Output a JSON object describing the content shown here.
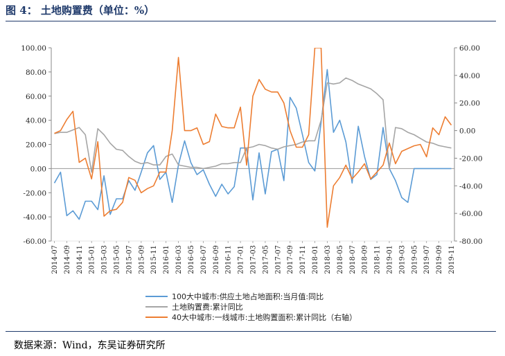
{
  "figure": {
    "title": "图 4：  土地购置费（单位：%）",
    "source": "数据来源：Wind，东吴证券研究所"
  },
  "chart_data": {
    "type": "line",
    "x": [
      "2014-07",
      "2014-08",
      "2014-09",
      "2014-10",
      "2014-11",
      "2014-12",
      "2015-01",
      "2015-02",
      "2015-03",
      "2015-04",
      "2015-05",
      "2015-06",
      "2015-07",
      "2015-08",
      "2015-09",
      "2015-10",
      "2015-11",
      "2015-12",
      "2016-01",
      "2016-02",
      "2016-03",
      "2016-04",
      "2016-05",
      "2016-06",
      "2016-07",
      "2016-08",
      "2016-09",
      "2016-10",
      "2016-11",
      "2016-12",
      "2017-01",
      "2017-02",
      "2017-03",
      "2017-04",
      "2017-05",
      "2017-06",
      "2017-07",
      "2017-08",
      "2017-09",
      "2017-10",
      "2017-11",
      "2017-12",
      "2018-01",
      "2018-02",
      "2018-03",
      "2018-04",
      "2018-05",
      "2018-06",
      "2018-07",
      "2018-08",
      "2018-09",
      "2018-10",
      "2018-11",
      "2018-12",
      "2019-01",
      "2019-02",
      "2019-03",
      "2019-04",
      "2019-05",
      "2019-06",
      "2019-07",
      "2019-08",
      "2019-09",
      "2019-10",
      "2019-11"
    ],
    "x_tick_labels": [
      "2014-07",
      "2014-09",
      "2014-11",
      "2015-01",
      "2015-03",
      "2015-05",
      "2015-07",
      "2015-09",
      "2015-11",
      "2016-01",
      "2016-03",
      "2016-05",
      "2016-07",
      "2016-09",
      "2016-11",
      "2017-01",
      "2017-03",
      "2017-05",
      "2017-07",
      "2017-09",
      "2017-11",
      "2018-01",
      "2018-03",
      "2018-05",
      "2018-07",
      "2018-09",
      "2018-11",
      "2019-01",
      "2019-03",
      "2019-05",
      "2019-07",
      "2019-09",
      "2019-11"
    ],
    "y_left": {
      "min": -60,
      "max": 100,
      "ticks": [
        "100.00",
        "80.00",
        "60.00",
        "40.00",
        "20.00",
        "0.00",
        "-20.00",
        "-40.00",
        "-60.00"
      ]
    },
    "y_right": {
      "min": -80,
      "max": 60,
      "ticks": [
        "60.00",
        "40.00",
        "20.00",
        "0.00",
        "-20.00",
        "-40.00",
        "-60.00",
        "-80.00"
      ]
    },
    "grid": false,
    "legend_position": "bottom",
    "series": [
      {
        "name": "100大中城市:供应土地占地面积:当月值:同比",
        "axis": "left",
        "color": "#5b9bd5",
        "values": [
          -12,
          -3,
          -39,
          -35,
          -42,
          -27,
          -27,
          -34,
          -6,
          -38,
          -25,
          -25,
          -10,
          -18,
          -3,
          13,
          19,
          -9,
          -3,
          -28,
          3,
          23,
          5,
          -5,
          -1,
          -13,
          -23,
          -13,
          -21,
          -15,
          17,
          17,
          -26,
          13,
          -21,
          14,
          16,
          -10,
          59,
          50,
          28,
          5,
          -2,
          38,
          82,
          30,
          40,
          22,
          -12,
          35,
          10,
          -9,
          -5,
          34,
          0,
          -10,
          -24,
          -28,
          0,
          0,
          0,
          0,
          0,
          0,
          0
        ]
      },
      {
        "name": "土地购置费:累计同比",
        "axis": "left",
        "color": "#a5a5a5",
        "values": [
          29,
          30,
          30,
          32,
          34,
          28,
          -3,
          33,
          28,
          21,
          16,
          15,
          10,
          6,
          4,
          5,
          3,
          3,
          10,
          12,
          3,
          2,
          1,
          1,
          0,
          1,
          2,
          4,
          4,
          5,
          5,
          17,
          18,
          20,
          19,
          17,
          16,
          18,
          19,
          20,
          22,
          23,
          23,
          40,
          71,
          70,
          71,
          75,
          73,
          70,
          68,
          66,
          62,
          57,
          0,
          34,
          33,
          30,
          28,
          25,
          22,
          21,
          19,
          18,
          17
        ]
      },
      {
        "name": "40大中城市:一线城市:土地购置面积:累计同比（右轴）",
        "axis": "right",
        "color": "#ed7d31",
        "values": [
          -2,
          0,
          8,
          14,
          -23,
          -20,
          -35,
          -8,
          -62,
          -58,
          -57,
          -52,
          -34,
          -36,
          -45,
          -42,
          -40,
          -30,
          -30,
          0,
          53,
          0,
          0,
          2,
          -10,
          -8,
          12,
          3,
          2,
          2,
          17,
          -25,
          25,
          37,
          30,
          28,
          28,
          20,
          0,
          -12,
          -12,
          -3,
          60,
          60,
          -70,
          -40,
          -34,
          -25,
          -35,
          -30,
          -24,
          -35,
          -30,
          -25,
          -9,
          -24,
          -15,
          -13,
          -11,
          -10,
          -19,
          2,
          -3,
          10,
          4
        ]
      }
    ]
  }
}
